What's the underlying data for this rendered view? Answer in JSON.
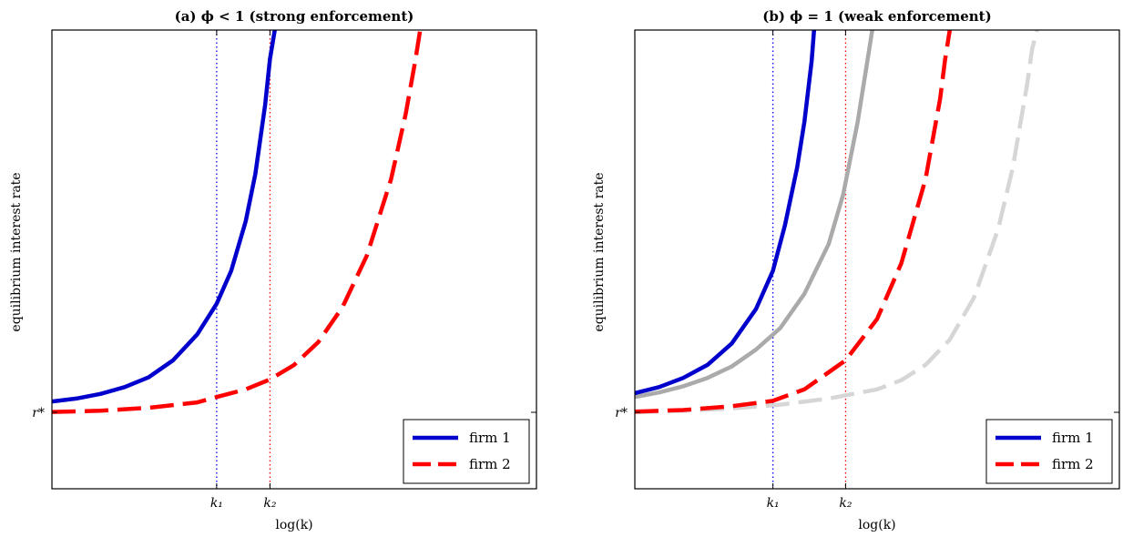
{
  "chart_data": [
    {
      "type": "line",
      "title": "(a) ϕ < 1 (strong enforcement)",
      "xlabel": "log(k)",
      "ylabel": "equilibrium interest rate",
      "x_ticks": [
        {
          "label": "k₁",
          "x": 3.4
        },
        {
          "label": "k₂",
          "x": 4.5
        }
      ],
      "y_ticks": [
        {
          "label": "r*",
          "y": 0
        }
      ],
      "xlim": [
        0,
        10
      ],
      "ylim": [
        -1,
        5
      ],
      "vlines": [
        {
          "x": 3.4,
          "color": "#0000ff",
          "style": "dotted"
        },
        {
          "x": 4.5,
          "color": "#ff0000",
          "style": "dotted"
        }
      ],
      "series": [
        {
          "name": "firm 1",
          "color": "#0000cc",
          "style": "solid",
          "opacity": 1,
          "points": [
            [
              0,
              0.14
            ],
            [
              0.5,
              0.18
            ],
            [
              1,
              0.24
            ],
            [
              1.5,
              0.33
            ],
            [
              2,
              0.46
            ],
            [
              2.5,
              0.68
            ],
            [
              3,
              1.02
            ],
            [
              3.4,
              1.42
            ],
            [
              3.7,
              1.85
            ],
            [
              4,
              2.5
            ],
            [
              4.2,
              3.12
            ],
            [
              4.4,
              4.02
            ],
            [
              4.5,
              4.62
            ],
            [
              4.6,
              5
            ]
          ]
        },
        {
          "name": "firm 2",
          "color": "#ff0000",
          "style": "dashed",
          "opacity": 1,
          "points": [
            [
              0,
              0.005
            ],
            [
              1,
              0.02
            ],
            [
              2,
              0.06
            ],
            [
              3,
              0.13
            ],
            [
              3.4,
              0.2
            ],
            [
              4,
              0.3
            ],
            [
              4.5,
              0.43
            ],
            [
              5,
              0.62
            ],
            [
              5.5,
              0.92
            ],
            [
              6,
              1.38
            ],
            [
              6.5,
              2.05
            ],
            [
              7,
              3.05
            ],
            [
              7.3,
              3.9
            ],
            [
              7.5,
              4.6
            ],
            [
              7.6,
              5
            ]
          ]
        }
      ],
      "legend": {
        "position": "bottom-right",
        "entries": [
          "firm 1",
          "firm 2"
        ]
      }
    },
    {
      "type": "line",
      "title": "(b) ϕ = 1 (weak enforcement)",
      "xlabel": "log(k)",
      "ylabel": "equilibrium interest rate",
      "x_ticks": [
        {
          "label": "k₁",
          "x": 2.85
        },
        {
          "label": "k₂",
          "x": 4.35
        }
      ],
      "y_ticks": [
        {
          "label": "r*",
          "y": 0
        }
      ],
      "xlim": [
        0,
        10
      ],
      "ylim": [
        -1,
        5
      ],
      "vlines": [
        {
          "x": 2.85,
          "color": "#0000ff",
          "style": "dotted"
        },
        {
          "x": 4.35,
          "color": "#ff0000",
          "style": "dotted"
        }
      ],
      "series": [
        {
          "name": "",
          "color": "#aaaaaa",
          "style": "solid",
          "opacity": 1,
          "points": [
            [
              0,
              0.2
            ],
            [
              0.5,
              0.26
            ],
            [
              1,
              0.34
            ],
            [
              1.5,
              0.45
            ],
            [
              2,
              0.6
            ],
            [
              2.5,
              0.82
            ],
            [
              3,
              1.1
            ],
            [
              3.5,
              1.55
            ],
            [
              4,
              2.2
            ],
            [
              4.3,
              2.85
            ],
            [
              4.6,
              3.8
            ],
            [
              4.8,
              4.6
            ],
            [
              4.9,
              5
            ]
          ]
        },
        {
          "name": "",
          "color": "#d6d6d6",
          "style": "dashed",
          "opacity": 1,
          "points": [
            [
              0,
              0
            ],
            [
              1,
              0.02
            ],
            [
              2,
              0.05
            ],
            [
              3,
              0.1
            ],
            [
              4,
              0.18
            ],
            [
              5,
              0.3
            ],
            [
              5.5,
              0.42
            ],
            [
              6,
              0.62
            ],
            [
              6.5,
              0.95
            ],
            [
              7,
              1.5
            ],
            [
              7.5,
              2.4
            ],
            [
              7.8,
              3.2
            ],
            [
              8.1,
              4.3
            ],
            [
              8.2,
              4.75
            ],
            [
              8.3,
              5
            ]
          ]
        },
        {
          "name": "firm 1",
          "color": "#0000cc",
          "style": "solid",
          "opacity": 1,
          "points": [
            [
              0,
              0.25
            ],
            [
              0.5,
              0.33
            ],
            [
              1,
              0.45
            ],
            [
              1.5,
              0.62
            ],
            [
              2,
              0.9
            ],
            [
              2.5,
              1.35
            ],
            [
              2.85,
              1.85
            ],
            [
              3.1,
              2.45
            ],
            [
              3.35,
              3.2
            ],
            [
              3.5,
              3.8
            ],
            [
              3.65,
              4.6
            ],
            [
              3.7,
              5
            ]
          ]
        },
        {
          "name": "firm 2",
          "color": "#ff0000",
          "style": "dashed",
          "opacity": 1,
          "points": [
            [
              0,
              0.01
            ],
            [
              1,
              0.03
            ],
            [
              2,
              0.08
            ],
            [
              2.85,
              0.15
            ],
            [
              3.5,
              0.3
            ],
            [
              4.35,
              0.68
            ],
            [
              5,
              1.22
            ],
            [
              5.5,
              1.95
            ],
            [
              6,
              3.05
            ],
            [
              6.3,
              4.1
            ],
            [
              6.4,
              4.6
            ],
            [
              6.5,
              5
            ]
          ]
        }
      ],
      "legend": {
        "position": "bottom-right",
        "entries": [
          "firm 1",
          "firm 2"
        ]
      }
    }
  ]
}
